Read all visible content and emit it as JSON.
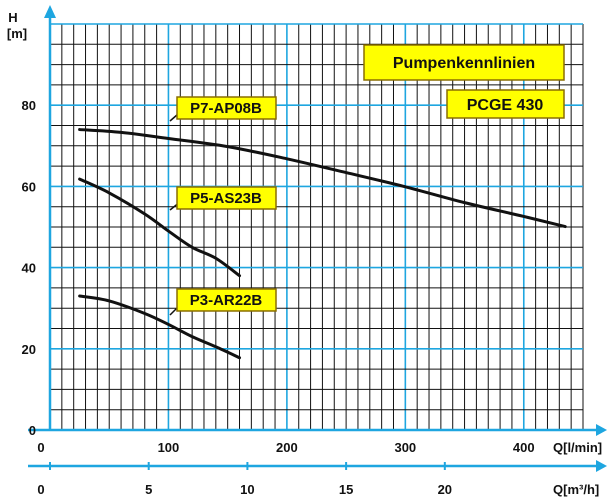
{
  "chart_data": {
    "type": "line",
    "title": "Pumpenkennlinien",
    "subtitle": "PCGE 430",
    "ylabel": "H",
    "yunit": "[m]",
    "xlabel": "Q[l/min]",
    "x2label": "Q[m³/h]",
    "xlim": [
      0,
      450
    ],
    "ylim": [
      0,
      100
    ],
    "x2lim": [
      0,
      27
    ],
    "grid": true,
    "x_ticks": [
      0,
      100,
      200,
      300,
      400
    ],
    "x2_ticks": [
      0,
      5,
      10,
      15,
      20
    ],
    "y_ticks": [
      0,
      20,
      40,
      60,
      80
    ],
    "series": [
      {
        "name": "P7-AP08B",
        "x": [
          25,
          60,
          100,
          150,
          200,
          250,
          300,
          350,
          400,
          435
        ],
        "y": [
          74,
          73.3,
          71.8,
          69.8,
          66.8,
          63.4,
          59.9,
          56,
          52.6,
          50.1
        ]
      },
      {
        "name": "P5-AS23B",
        "x": [
          25,
          50,
          80,
          100,
          120,
          140,
          160
        ],
        "y": [
          61.8,
          58.4,
          53.2,
          49,
          45,
          42.3,
          38
        ]
      },
      {
        "name": "P3-AR22B",
        "x": [
          25,
          50,
          80,
          100,
          120,
          140,
          160
        ],
        "y": [
          33,
          31.8,
          28.7,
          26,
          23,
          20.5,
          17.8
        ]
      }
    ]
  },
  "colors": {
    "grid": "#111111",
    "axis": "#1ea6e0",
    "curve": "#111111",
    "label_fill": "#ffff00",
    "label_stroke": "#8a6e00"
  }
}
